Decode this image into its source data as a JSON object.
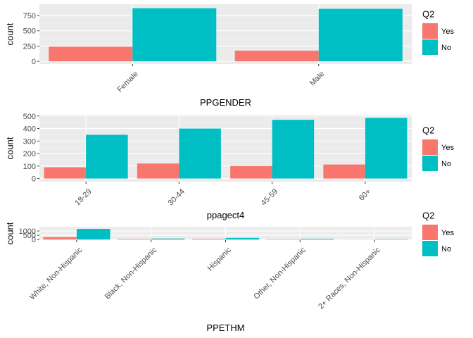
{
  "chart_data": [
    {
      "type": "bar",
      "xlabel": "PPGENDER",
      "ylabel": "count",
      "categories": [
        "Female",
        "Male"
      ],
      "series": [
        {
          "name": "Yes",
          "values": [
            240,
            175
          ]
        },
        {
          "name": "No",
          "values": [
            870,
            860
          ]
        }
      ],
      "yticks": [
        0,
        250,
        500,
        750
      ],
      "ylim": [
        -45,
        935
      ],
      "legend_title": "Q2",
      "legend_position": "right",
      "grid": true,
      "colors": {
        "Yes": "#F8766D",
        "No": "#00BFC4"
      }
    },
    {
      "type": "bar",
      "xlabel": "ppagect4",
      "ylabel": "count",
      "categories": [
        "18-29",
        "30-44",
        "45-59",
        "60+"
      ],
      "series": [
        {
          "name": "Yes",
          "values": [
            90,
            120,
            100,
            112
          ]
        },
        {
          "name": "No",
          "values": [
            350,
            400,
            470,
            485
          ]
        }
      ],
      "yticks": [
        0,
        100,
        200,
        300,
        400,
        500
      ],
      "ylim": [
        -25,
        510
      ],
      "legend_title": "Q2",
      "legend_position": "right",
      "grid": true,
      "colors": {
        "Yes": "#F8766D",
        "No": "#00BFC4"
      }
    },
    {
      "type": "bar",
      "xlabel": "PPETHM",
      "ylabel": "count",
      "categories": [
        "White, Non-Hispanic",
        "Black, Non-Hispanic",
        "Hispanic",
        "Other, Non-Hispanic",
        "2+ Races, Non-Hispanic"
      ],
      "series": [
        {
          "name": "Yes",
          "values": [
            280,
            60,
            70,
            40,
            10
          ]
        },
        {
          "name": "No",
          "values": [
            1250,
            110,
            190,
            80,
            40
          ]
        }
      ],
      "yticks": [
        0,
        500,
        1000
      ],
      "yticklabels": [
        "0",
        "500",
        "1000"
      ],
      "ylim": [
        -70,
        1500
      ],
      "legend_title": "Q2",
      "legend_position": "right",
      "grid": true,
      "colors": {
        "Yes": "#F8766D",
        "No": "#00BFC4"
      }
    }
  ]
}
